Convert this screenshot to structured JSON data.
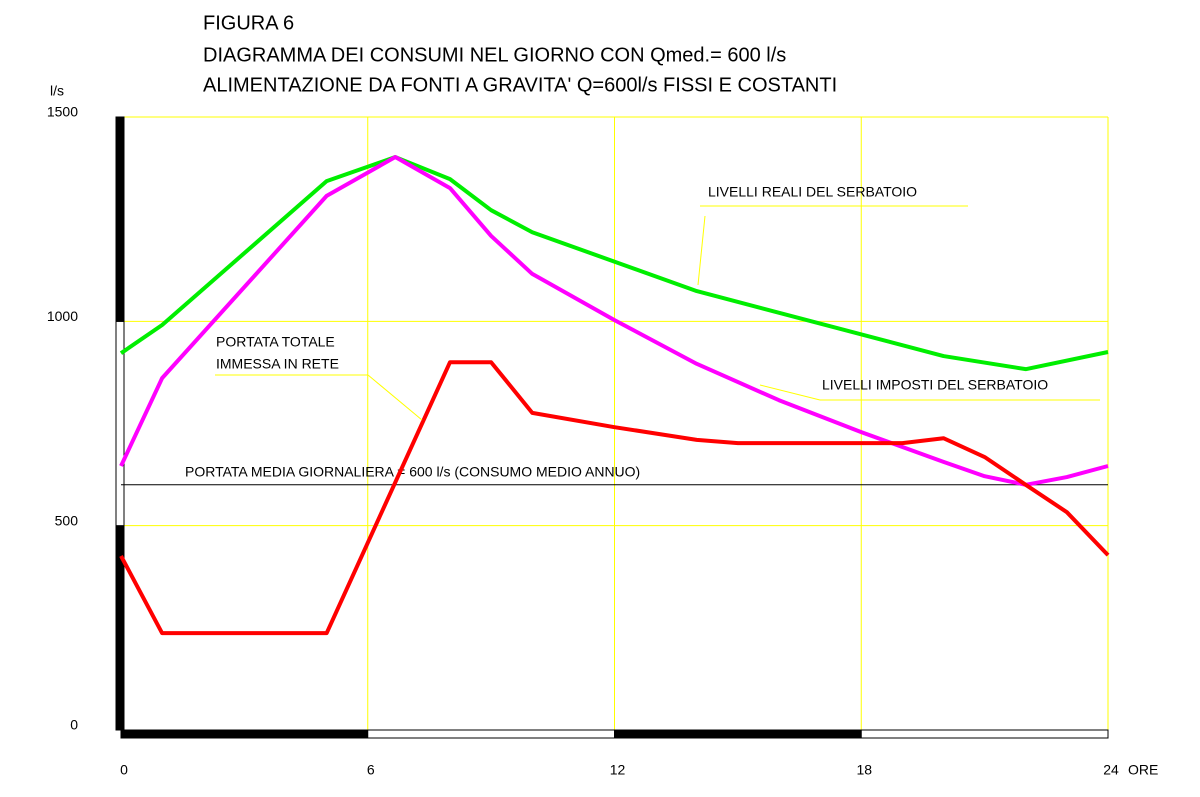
{
  "chart_data": {
    "type": "line",
    "title_lines": [
      "FIGURA 6",
      "DIAGRAMMA DEI CONSUMI NEL GIORNO CON Qmed.= 600 l/s",
      "ALIMENTAZIONE DA FONTI A GRAVITA' Q=600l/s FISSI E COSTANTI"
    ],
    "y_label": "l/s",
    "x_label": "ORE",
    "xlim": [
      0,
      24
    ],
    "xticks": [
      0,
      6,
      12,
      18,
      24
    ],
    "ylim": [
      0,
      1500
    ],
    "yticks": [
      0,
      500,
      1000,
      1500
    ],
    "grid": true,
    "grid_color": "#ffff00",
    "series": [
      {
        "name": "LIVELLI REALI DEL SERBATOIO",
        "color": "#00ee00",
        "x": [
          0,
          1,
          5,
          6.67,
          8,
          9,
          10,
          14,
          20,
          22,
          24
        ],
        "values": [
          922,
          991,
          1343,
          1402,
          1348,
          1272,
          1218,
          1074,
          915,
          883,
          925
        ]
      },
      {
        "name": "LIVELLI IMPOSTI DEL SERBATOIO",
        "color": "#ff00ff",
        "x": [
          0,
          1,
          5,
          6.67,
          8,
          9,
          10,
          12,
          14,
          16,
          18,
          20,
          21,
          22,
          23,
          24
        ],
        "values": [
          646,
          861,
          1307,
          1402,
          1326,
          1209,
          1116,
          1003,
          896,
          807,
          729,
          656,
          621,
          600,
          619,
          646
        ]
      },
      {
        "name_lines": [
          "PORTATA TOTALE",
          "IMMESSA IN RETE"
        ],
        "color": "#ff0000",
        "x": [
          0,
          1,
          5,
          8,
          9,
          10,
          12,
          14,
          15,
          19,
          20,
          21,
          22,
          23,
          24
        ],
        "values": [
          426,
          237,
          237,
          900,
          900,
          776,
          741,
          710,
          702,
          702,
          714,
          668,
          600,
          533,
          428
        ]
      }
    ],
    "hline": {
      "value": 600,
      "label": "PORTATA MEDIA GIORNALIERA =  600 l/s (CONSUMO MEDIO ANNUO)"
    }
  }
}
